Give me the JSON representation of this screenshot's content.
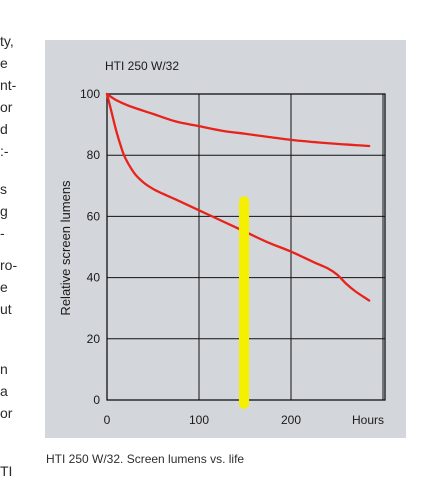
{
  "margin_text": [
    "ty,",
    "e",
    "nt-",
    "or",
    "d",
    ":-",
    "s",
    "g",
    "-",
    "ro-",
    "e",
    "ut",
    "n",
    "a",
    "or",
    "TI"
  ],
  "caption": "HTI 250 W/32. Screen lumens vs. life",
  "highlight_color": "#f4f000",
  "curve_color": "#e8231b",
  "chart_data": {
    "type": "line",
    "title": "HTI 250 W/32",
    "xlabel": "Hours",
    "ylabel": "Relative screen lumens",
    "xlim": [
      0,
      300
    ],
    "ylim": [
      0,
      100
    ],
    "x_ticks": [
      0,
      100,
      200
    ],
    "y_ticks": [
      0,
      20,
      40,
      60,
      80,
      100
    ],
    "grid": true,
    "series": [
      {
        "x": [
          0,
          10,
          25,
          50,
          75,
          100,
          125,
          150,
          175,
          200,
          225,
          250,
          265,
          275,
          285
        ],
        "y": [
          100,
          98,
          96,
          93.5,
          91,
          89.5,
          88,
          87,
          86,
          85,
          84.3,
          83.7,
          83.4,
          83.2,
          83
        ]
      },
      {
        "x": [
          0,
          5,
          10,
          15,
          20,
          30,
          40,
          50,
          60,
          75,
          100,
          125,
          150,
          175,
          200,
          225,
          240,
          250,
          260,
          270,
          280,
          285
        ],
        "y": [
          100,
          94,
          88,
          83,
          79,
          74,
          71,
          69,
          67.5,
          65.5,
          62,
          58.5,
          55,
          51.5,
          48.5,
          45,
          43,
          41,
          38,
          35.5,
          33.5,
          32.5
        ]
      }
    ],
    "annotations": [
      {
        "type": "marker-line",
        "x": 150,
        "y_range": [
          0,
          65
        ]
      }
    ]
  }
}
